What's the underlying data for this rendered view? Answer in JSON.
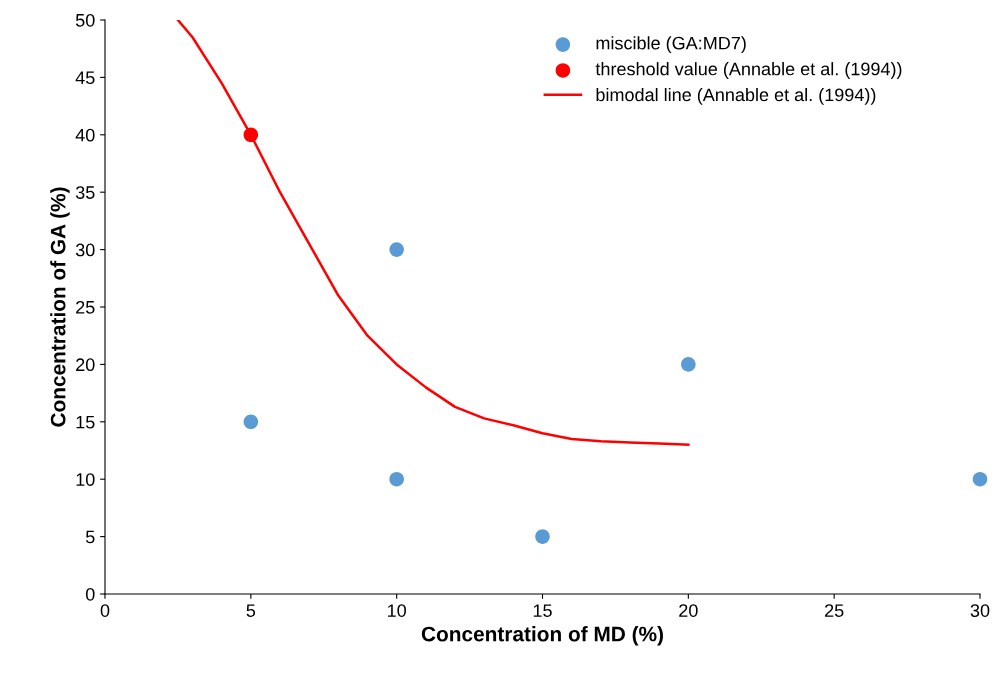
{
  "chart_data": {
    "type": "scatter",
    "xlabel": "Concentration of MD (%)",
    "ylabel": "Concentration of GA (%)",
    "xlim": [
      0,
      30
    ],
    "xticks": [
      0,
      5,
      10,
      15,
      20,
      25,
      30
    ],
    "ylim": [
      0,
      50
    ],
    "yticks": [
      0,
      5,
      10,
      15,
      20,
      25,
      30,
      35,
      40,
      45,
      50
    ],
    "grid": false,
    "legend": "top right",
    "marker": "circle",
    "series": [
      {
        "name": "miscible (GA:MD7)",
        "color": "#5b9bd5",
        "x": [
          5,
          10,
          10,
          15,
          20,
          30
        ],
        "values": [
          15,
          30,
          10,
          5,
          20,
          10
        ]
      },
      {
        "name": "threshold value (Annable et al. (1994))",
        "color": "#ff0000",
        "x": [
          5
        ],
        "values": [
          40
        ]
      },
      {
        "name": "bimodal line (Annable et al. (1994))",
        "type": "line",
        "color": "#ff0000",
        "marker": "none",
        "line_style": "solid",
        "x": [
          2.5,
          3,
          4,
          5,
          6,
          7,
          8,
          9,
          10,
          11,
          12,
          13,
          14,
          15,
          16,
          17,
          18,
          19,
          20
        ],
        "values": [
          50,
          48.5,
          44.5,
          40,
          35,
          30.5,
          26,
          22.5,
          20,
          18,
          16.3,
          15.3,
          14.7,
          14,
          13.5,
          13.3,
          13.2,
          13.1,
          13
        ]
      }
    ]
  }
}
